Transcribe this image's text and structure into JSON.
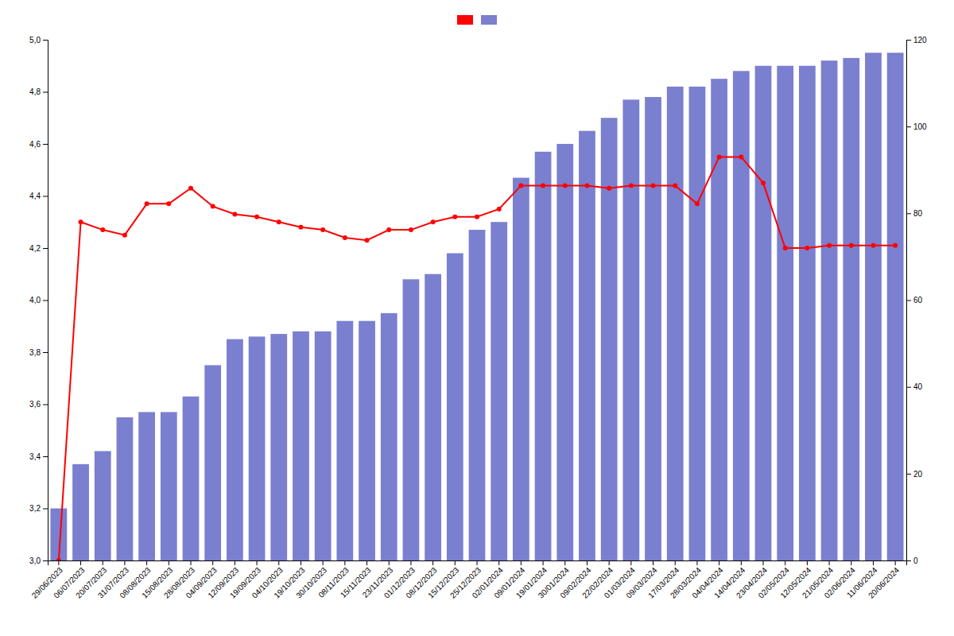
{
  "chart_data": {
    "type": "bar",
    "categories": [
      "29/06/2023",
      "06/07/2023",
      "20/07/2023",
      "31/07/2023",
      "08/08/2023",
      "15/08/2023",
      "28/08/2023",
      "04/09/2023",
      "12/09/2023",
      "19/09/2023",
      "04/10/2023",
      "19/10/2023",
      "30/10/2023",
      "08/11/2023",
      "15/11/2023",
      "23/11/2023",
      "01/12/2023",
      "08/12/2023",
      "15/12/2023",
      "25/12/2023",
      "02/01/2024",
      "09/01/2024",
      "19/01/2024",
      "30/01/2024",
      "09/02/2024",
      "22/02/2024",
      "01/03/2024",
      "09/03/2024",
      "17/03/2024",
      "28/03/2024",
      "04/04/2024",
      "14/04/2024",
      "23/04/2024",
      "02/05/2024",
      "12/05/2024",
      "21/05/2024",
      "02/06/2024",
      "11/06/2024",
      "20/06/2024"
    ],
    "series": [
      {
        "type": "bar",
        "color": "#7b7fcf",
        "values": [
          3.2,
          3.37,
          3.42,
          3.55,
          3.57,
          3.57,
          3.63,
          3.75,
          3.85,
          3.86,
          3.87,
          3.88,
          3.88,
          3.92,
          3.92,
          3.95,
          4.08,
          4.1,
          4.18,
          4.27,
          4.3,
          4.47,
          4.57,
          4.6,
          4.65,
          4.7,
          4.77,
          4.78,
          4.82,
          4.82,
          4.85,
          4.88,
          4.9,
          4.9,
          4.9,
          4.92,
          4.93,
          4.95,
          4.95
        ]
      },
      {
        "type": "line",
        "color": "#ff0000",
        "marker": "circle",
        "values": [
          3.0,
          4.3,
          4.27,
          4.25,
          4.37,
          4.37,
          4.43,
          4.36,
          4.33,
          4.32,
          4.3,
          4.28,
          4.27,
          4.24,
          4.23,
          4.27,
          4.27,
          4.3,
          4.32,
          4.32,
          4.35,
          4.44,
          4.44,
          4.44,
          4.44,
          4.43,
          4.44,
          4.44,
          4.44,
          4.37,
          4.55,
          4.55,
          4.45,
          4.2,
          4.2,
          4.21,
          4.21,
          4.21,
          4.21
        ]
      }
    ],
    "ylim": [
      3.0,
      5.0
    ],
    "yticks": [
      {
        "value": 3.0,
        "label": "3,0"
      },
      {
        "value": 3.2,
        "label": "3,2"
      },
      {
        "value": 3.4,
        "label": "3,4"
      },
      {
        "value": 3.6,
        "label": "3,6"
      },
      {
        "value": 3.8,
        "label": "3,8"
      },
      {
        "value": 4.0,
        "label": "4,0"
      },
      {
        "value": 4.2,
        "label": "4,2"
      },
      {
        "value": 4.4,
        "label": "4,4"
      },
      {
        "value": 4.6,
        "label": "4,6"
      },
      {
        "value": 4.8,
        "label": "4,8"
      },
      {
        "value": 5.0,
        "label": "5,0"
      }
    ],
    "y2lim": [
      0,
      120
    ],
    "y2ticks": [
      0,
      20,
      40,
      60,
      80,
      100,
      120
    ],
    "grid": false,
    "legend": "top"
  }
}
